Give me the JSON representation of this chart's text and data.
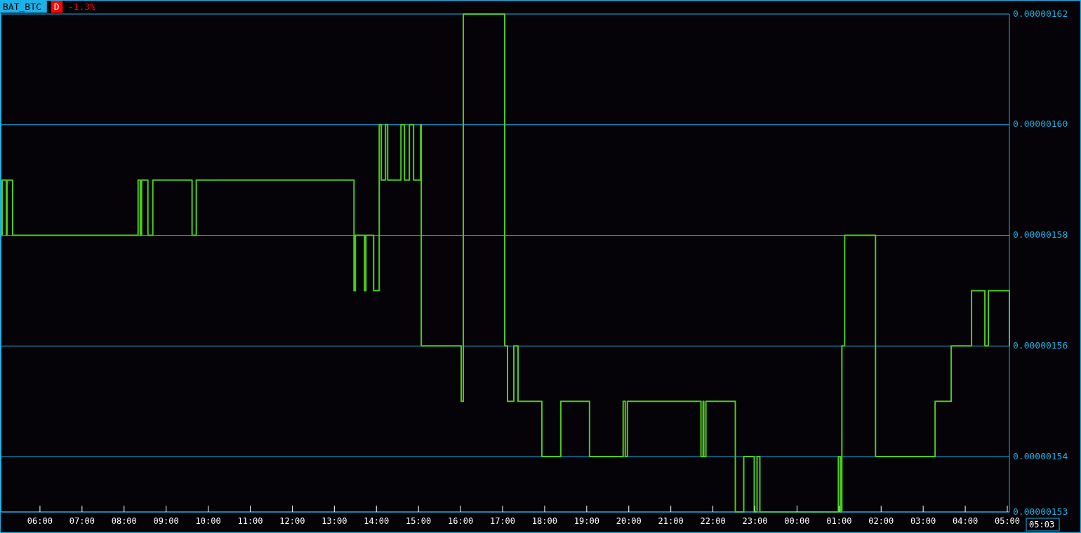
{
  "chart_data": {
    "type": "step",
    "title": "BAT_BTC",
    "annotations": [
      "D",
      "-1.3%",
      "05:03"
    ],
    "xlim": [
      "2000-01-01T05:05",
      "2000-01-02T05:03"
    ],
    "xticks": [
      {
        "value": "2000-01-01T06:00",
        "label": "06:00"
      },
      {
        "value": "2000-01-01T07:00",
        "label": "07:00"
      },
      {
        "value": "2000-01-01T08:00",
        "label": "08:00"
      },
      {
        "value": "2000-01-01T09:00",
        "label": "09:00"
      },
      {
        "value": "2000-01-01T10:00",
        "label": "10:00"
      },
      {
        "value": "2000-01-01T11:00",
        "label": "11:00"
      },
      {
        "value": "2000-01-01T12:00",
        "label": "12:00"
      },
      {
        "value": "2000-01-01T13:00",
        "label": "13:00"
      },
      {
        "value": "2000-01-01T14:00",
        "label": "14:00"
      },
      {
        "value": "2000-01-01T15:00",
        "label": "15:00"
      },
      {
        "value": "2000-01-01T16:00",
        "label": "16:00"
      },
      {
        "value": "2000-01-01T17:00",
        "label": "17:00"
      },
      {
        "value": "2000-01-01T18:00",
        "label": "18:00"
      },
      {
        "value": "2000-01-01T19:00",
        "label": "19:00"
      },
      {
        "value": "2000-01-01T20:00",
        "label": "20:00"
      },
      {
        "value": "2000-01-01T21:00",
        "label": "21:00"
      },
      {
        "value": "2000-01-01T22:00",
        "label": "22:00"
      },
      {
        "value": "2000-01-01T23:00",
        "label": "23:00"
      },
      {
        "value": "2000-01-02T00:00",
        "label": "00:00"
      },
      {
        "value": "2000-01-02T01:00",
        "label": "01:00"
      },
      {
        "value": "2000-01-02T02:00",
        "label": "02:00"
      },
      {
        "value": "2000-01-02T03:00",
        "label": "03:00"
      },
      {
        "value": "2000-01-02T04:00",
        "label": "04:00"
      },
      {
        "value": "2000-01-02T05:00",
        "label": "05:00"
      }
    ],
    "ylim": [
      1.53e-06,
      1.62e-06
    ],
    "yticks": [
      {
        "value": 1.53e-06,
        "label": "0.00000153"
      },
      {
        "value": 1.54e-06,
        "label": "0.00000154"
      },
      {
        "value": 1.56e-06,
        "label": "0.00000156"
      },
      {
        "value": 1.58e-06,
        "label": "0.00000158"
      },
      {
        "value": 1.6e-06,
        "label": "0.00000160"
      },
      {
        "value": 1.62e-06,
        "label": "0.00000162"
      }
    ],
    "grid": "y",
    "marker": "none",
    "line_style": "solid",
    "series": [
      {
        "color": "#4ccc1a",
        "x": [
          "2000-01-01T05:05",
          "2000-01-01T05:06",
          "2000-01-01T05:12",
          "2000-01-01T05:13",
          "2000-01-01T05:21",
          "2000-01-01T08:20",
          "2000-01-01T08:23",
          "2000-01-01T08:25",
          "2000-01-01T08:34",
          "2000-01-01T08:41",
          "2000-01-01T09:37",
          "2000-01-01T09:43",
          "2000-01-01T13:28",
          "2000-01-01T13:30",
          "2000-01-01T13:43",
          "2000-01-01T13:45",
          "2000-01-01T13:56",
          "2000-01-01T14:04",
          "2000-01-01T14:07",
          "2000-01-01T14:13",
          "2000-01-01T14:16",
          "2000-01-01T14:35",
          "2000-01-01T14:40",
          "2000-01-01T14:47",
          "2000-01-01T14:53",
          "2000-01-01T15:03",
          "2000-01-01T15:04",
          "2000-01-01T16:01",
          "2000-01-01T16:04",
          "2000-01-01T17:03",
          "2000-01-01T17:07",
          "2000-01-01T17:16",
          "2000-01-01T17:22",
          "2000-01-01T17:56",
          "2000-01-01T18:23",
          "2000-01-01T19:04",
          "2000-01-01T19:52",
          "2000-01-01T19:55",
          "2000-01-01T19:58",
          "2000-01-01T21:43",
          "2000-01-01T21:46",
          "2000-01-01T21:47",
          "2000-01-01T21:50",
          "2000-01-01T22:32",
          "2000-01-01T22:44",
          "2000-01-01T22:59",
          "2000-01-01T23:03",
          "2000-01-01T23:07",
          "2000-01-02T00:59",
          "2000-01-02T01:02",
          "2000-01-02T01:04",
          "2000-01-02T01:08",
          "2000-01-02T01:52",
          "2000-01-02T03:17",
          "2000-01-02T03:40",
          "2000-01-02T04:09",
          "2000-01-02T04:28",
          "2000-01-02T04:33",
          "2000-01-02T05:03"
        ],
        "values": [
          1.58e-06,
          1.59e-06,
          1.58e-06,
          1.59e-06,
          1.58e-06,
          1.59e-06,
          1.58e-06,
          1.59e-06,
          1.58e-06,
          1.59e-06,
          1.58e-06,
          1.59e-06,
          1.57e-06,
          1.58e-06,
          1.57e-06,
          1.58e-06,
          1.57e-06,
          1.6e-06,
          1.59e-06,
          1.6e-06,
          1.59e-06,
          1.6e-06,
          1.59e-06,
          1.6e-06,
          1.59e-06,
          1.6e-06,
          1.56e-06,
          1.55e-06,
          1.62e-06,
          1.56e-06,
          1.55e-06,
          1.56e-06,
          1.55e-06,
          1.54e-06,
          1.55e-06,
          1.54e-06,
          1.55e-06,
          1.54e-06,
          1.55e-06,
          1.54e-06,
          1.55e-06,
          1.54e-06,
          1.55e-06,
          1.53e-06,
          1.54e-06,
          1.53e-06,
          1.54e-06,
          1.53e-06,
          1.54e-06,
          1.53e-06,
          1.56e-06,
          1.58e-06,
          1.54e-06,
          1.55e-06,
          1.56e-06,
          1.57e-06,
          1.56e-06,
          1.57e-06,
          1.56e-06
        ]
      }
    ]
  }
}
